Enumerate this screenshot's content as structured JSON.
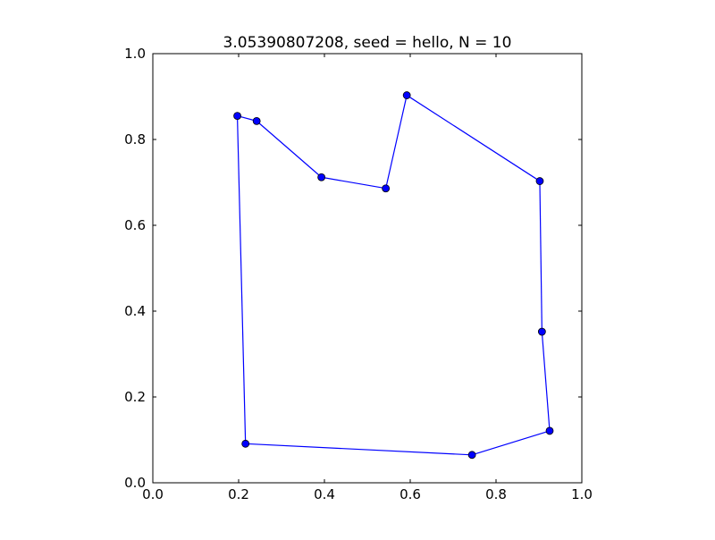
{
  "chart_data": {
    "type": "line",
    "title": "3.05390807208, seed = hello, N = 10",
    "xlabel": "",
    "ylabel": "",
    "xlim": [
      0.0,
      1.0
    ],
    "ylim": [
      0.0,
      1.0
    ],
    "xticks": [
      "0.0",
      "0.2",
      "0.4",
      "0.6",
      "0.8",
      "1.0"
    ],
    "yticks": [
      "0.0",
      "0.2",
      "0.4",
      "0.6",
      "0.8",
      "1.0"
    ],
    "grid": false,
    "legend": "none",
    "colors": {
      "line": "#0000ff",
      "marker": "#0000ff",
      "marker_edge": "#000000",
      "axes": "#000000"
    },
    "series": [
      {
        "marker": "circle",
        "closed": true,
        "points": [
          {
            "x": 0.197,
            "y": 0.855
          },
          {
            "x": 0.242,
            "y": 0.843
          },
          {
            "x": 0.393,
            "y": 0.712
          },
          {
            "x": 0.543,
            "y": 0.686
          },
          {
            "x": 0.592,
            "y": 0.903
          },
          {
            "x": 0.902,
            "y": 0.703
          },
          {
            "x": 0.907,
            "y": 0.352
          },
          {
            "x": 0.925,
            "y": 0.121
          },
          {
            "x": 0.744,
            "y": 0.065
          },
          {
            "x": 0.216,
            "y": 0.091
          }
        ]
      }
    ]
  }
}
